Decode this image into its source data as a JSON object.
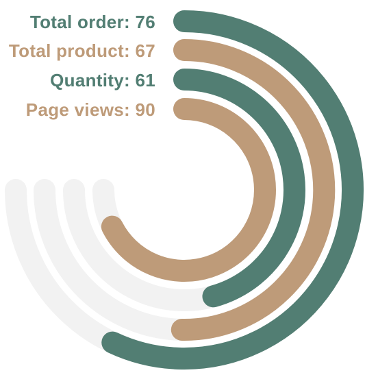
{
  "chart_data": {
    "type": "radial-bar",
    "max": 100,
    "track_color": "#f2f2f2",
    "series": [
      {
        "name": "Total order",
        "value": 76,
        "label": "Total order: 76",
        "color": "#527e73"
      },
      {
        "name": "Total product",
        "value": 67,
        "label": "Total product: 67",
        "color": "#be9b79"
      },
      {
        "name": "Quantity",
        "value": 61,
        "label": "Quantity: 61",
        "color": "#527e73"
      },
      {
        "name": "Page views",
        "value": 90,
        "label": "Page views: 90",
        "color": "#be9b79"
      }
    ]
  }
}
